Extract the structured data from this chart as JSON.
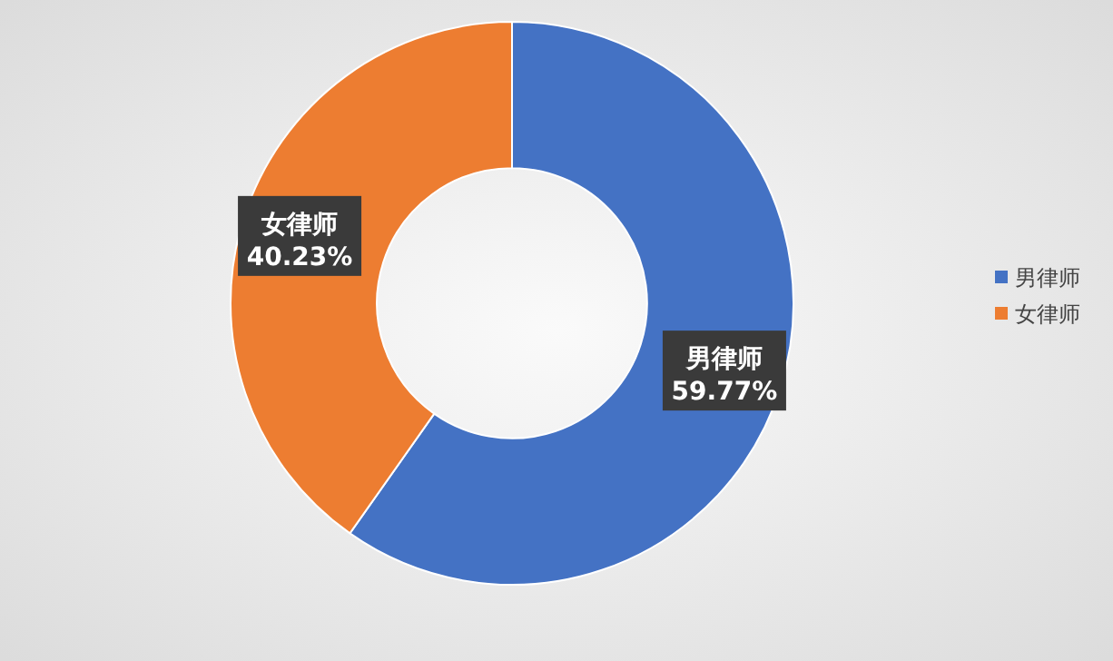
{
  "chart_data": {
    "type": "donut",
    "categories": [
      "男律师",
      "女律师"
    ],
    "values": [
      59.77,
      40.23
    ],
    "colors": [
      "#4472c4",
      "#ed7d31"
    ],
    "value_labels": [
      "59.77%",
      "40.23%"
    ],
    "legend": "right"
  }
}
